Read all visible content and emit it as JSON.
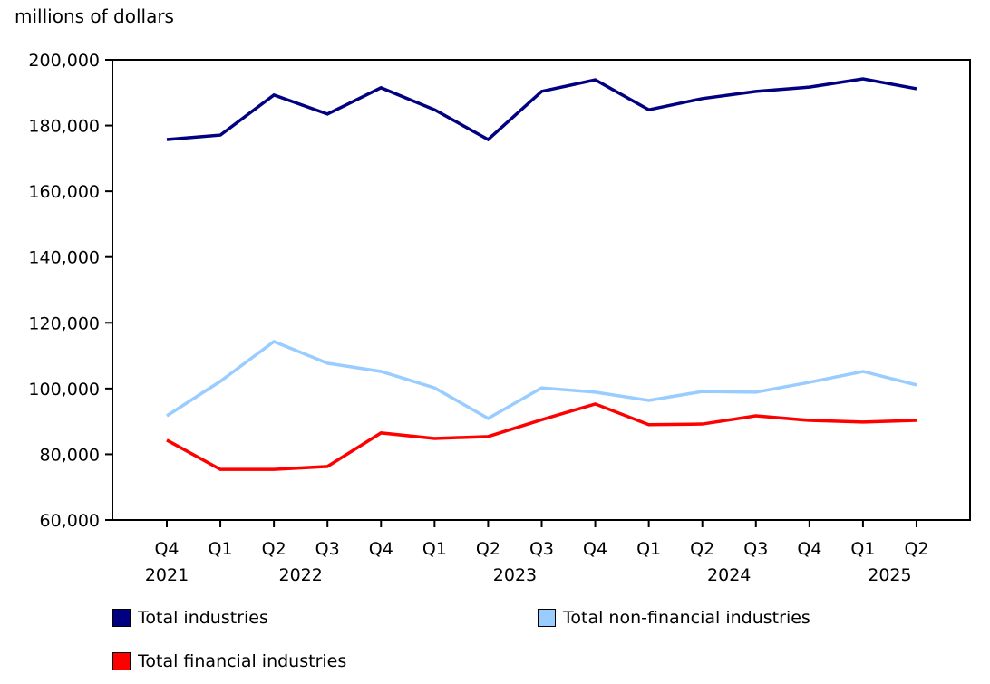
{
  "chart_data": {
    "type": "line",
    "ylabel": "millions of dollars",
    "ylim": [
      60000,
      200000
    ],
    "yticks": [
      60000,
      80000,
      100000,
      120000,
      140000,
      160000,
      180000,
      200000
    ],
    "ytick_labels": [
      "60,000",
      "80,000",
      "100,000",
      "120,000",
      "140,000",
      "160,000",
      "180,000",
      "200,000"
    ],
    "categories": [
      "Q4",
      "Q1",
      "Q2",
      "Q3",
      "Q4",
      "Q1",
      "Q2",
      "Q3",
      "Q4",
      "Q1",
      "Q2",
      "Q3",
      "Q4",
      "Q1",
      "Q2"
    ],
    "years": [
      {
        "label": "2021",
        "start": 0,
        "end": 0
      },
      {
        "label": "2022",
        "start": 1,
        "end": 4
      },
      {
        "label": "2023",
        "start": 5,
        "end": 8
      },
      {
        "label": "2024",
        "start": 9,
        "end": 12
      },
      {
        "label": "2025",
        "start": 13,
        "end": 14
      }
    ],
    "grid": false,
    "legend_placement": "bottom",
    "series": [
      {
        "name": "Total industries",
        "color": "#000080",
        "values": [
          175750,
          177100,
          189300,
          183500,
          191500,
          184800,
          175750,
          190400,
          193900,
          184800,
          188200,
          190400,
          191700,
          194200,
          191200
        ]
      },
      {
        "name": "Total non-financial industries",
        "color": "#99ccff",
        "values": [
          91700,
          102200,
          114300,
          107700,
          105200,
          100200,
          90900,
          100200,
          98900,
          96400,
          99100,
          98900,
          101900,
          105200,
          101100
        ]
      },
      {
        "name": "Total financial industries",
        "color": "#ff0000",
        "values": [
          84300,
          75400,
          75400,
          76300,
          86500,
          84800,
          85400,
          90500,
          95300,
          89000,
          89200,
          91700,
          90300,
          89800,
          90300
        ]
      }
    ]
  }
}
